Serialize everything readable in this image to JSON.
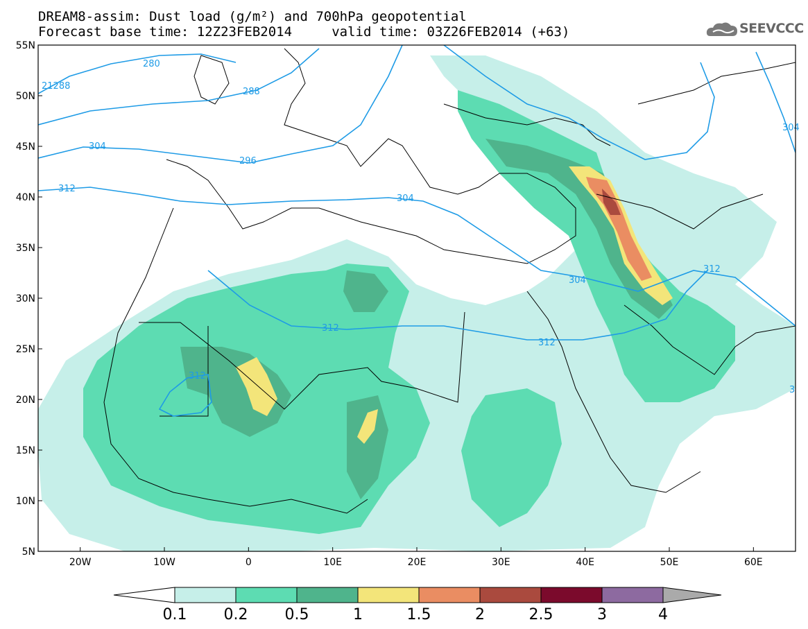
{
  "header": {
    "title_line1": "DREAM8-assim: Dust load (g/m²) and 700hPa geopotential",
    "title_line2": "Forecast base time: 12Z23FEB2014     valid time: 03Z26FEB2014 (+63)",
    "logo_text": "SEEVCCC"
  },
  "map": {
    "lon_range": [
      -25,
      65
    ],
    "lat_range": [
      5,
      55
    ],
    "lat_ticks": [
      "5N",
      "10N",
      "15N",
      "20N",
      "25N",
      "30N",
      "35N",
      "40N",
      "45N",
      "50N",
      "55N"
    ],
    "lon_ticks": [
      "20W",
      "10W",
      "0",
      "10E",
      "20E",
      "30E",
      "40E",
      "50E",
      "60E"
    ],
    "contour_labels": [
      "280",
      "288",
      "21288",
      "304",
      "296",
      "312",
      "304",
      "312",
      "304",
      "312",
      "312",
      "312",
      "304",
      "3"
    ]
  },
  "colorbar": {
    "labels": [
      "0.1",
      "0.2",
      "0.5",
      "1",
      "1.5",
      "2",
      "2.5",
      "3",
      "4"
    ],
    "colors": {
      "c1": "#c6efe9",
      "c2": "#5ddcb2",
      "c3": "#4fb48c",
      "c4": "#f3e57a",
      "c5": "#ea8d62",
      "c6": "#aa4a3e",
      "c7": "#7b0a2c",
      "c8": "#8d6aa0",
      "c9": "#aaaaaa"
    }
  }
}
